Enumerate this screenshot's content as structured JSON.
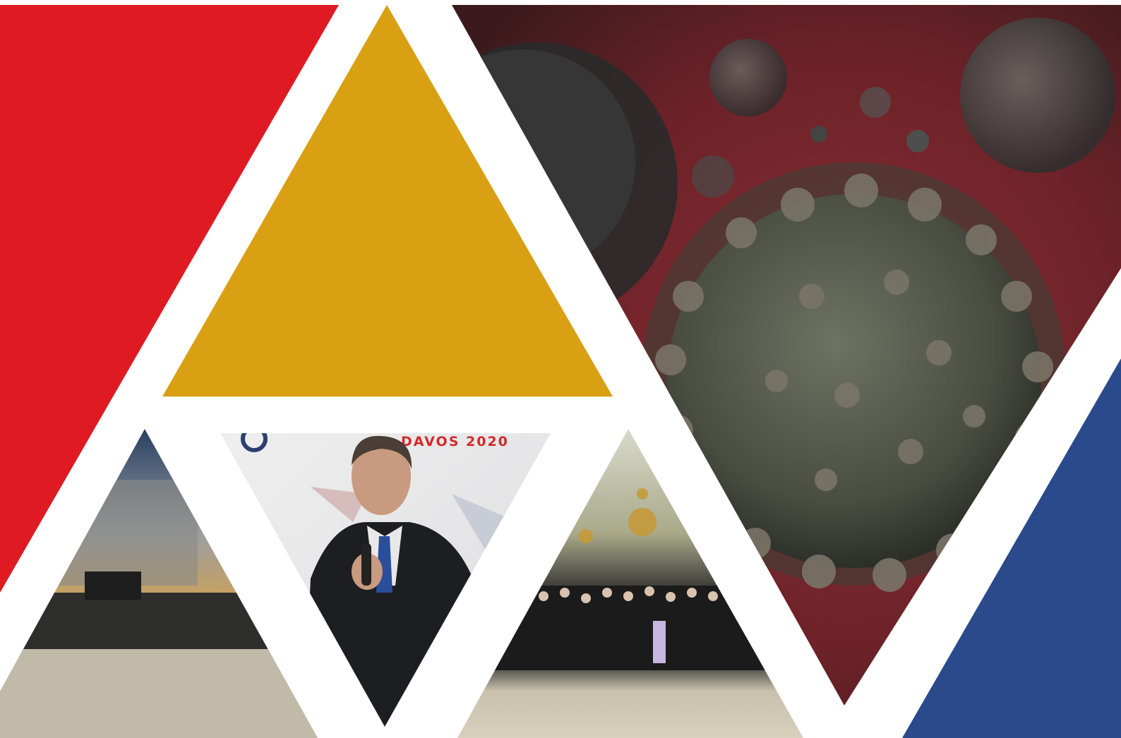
{
  "colors": {
    "red": "#e01a22",
    "gold": "#d9a013",
    "blue": "#2a4a8c",
    "background": "#ffffff",
    "virus_bg": "#6e2a2e",
    "virus_body": "#5a5e52",
    "monument_sky": "#2c3e5a",
    "hall_wall": "#b7b297",
    "hall_floor": "#c9c1ae"
  },
  "photos": {
    "speaker_banner_text": "DAVOS 2020"
  },
  "icons": {
    "banner_logo": "circle-logo-icon"
  }
}
